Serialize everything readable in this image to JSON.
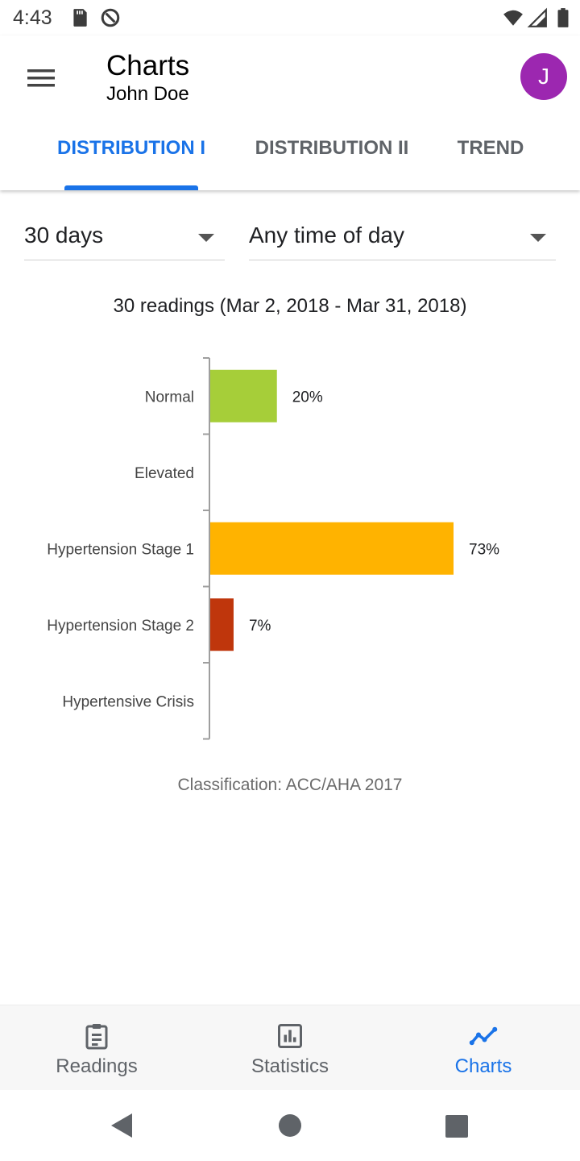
{
  "status_bar": {
    "time": "4:43",
    "icons": [
      "sd-card-icon",
      "data-saver-icon",
      "wifi-icon",
      "cell-signal-icon",
      "battery-icon"
    ]
  },
  "app_bar": {
    "title": "Charts",
    "subtitle": "John Doe",
    "avatar_initial": "J",
    "avatar_color": "#9c27b0",
    "menu_icon": "hamburger-menu-icon"
  },
  "tabs": [
    {
      "label": "DISTRIBUTION I",
      "active": true
    },
    {
      "label": "DISTRIBUTION II",
      "active": false
    },
    {
      "label": "TREND",
      "active": false
    }
  ],
  "filters": {
    "period": {
      "selected": "30 days"
    },
    "time_of_day": {
      "selected": "Any time of day"
    }
  },
  "chart_subtitle": "30 readings (Mar 2, 2018 - Mar 31, 2018)",
  "chart_data": {
    "type": "bar",
    "orientation": "horizontal",
    "categories": [
      "Normal",
      "Elevated",
      "Hypertension Stage 1",
      "Hypertension Stage 2",
      "Hypertensive Crisis"
    ],
    "values": [
      20,
      0,
      73,
      7,
      0
    ],
    "value_labels": [
      "20%",
      "",
      "73%",
      "7%",
      ""
    ],
    "colors": [
      "#a6ce39",
      "#f0e442",
      "#ffb300",
      "#bf360c",
      "#8b0000"
    ],
    "xlim": [
      0,
      100
    ],
    "grid": false,
    "legend": "none"
  },
  "footnote": "Classification: ACC/AHA 2017",
  "bottom_nav": [
    {
      "label": "Readings",
      "icon": "clipboard-icon",
      "active": false
    },
    {
      "label": "Statistics",
      "icon": "bar-chart-icon",
      "active": false
    },
    {
      "label": "Charts",
      "icon": "trend-line-icon",
      "active": true
    }
  ],
  "colors": {
    "accent": "#1a73e8",
    "inactive": "#5f6368"
  },
  "system_nav": [
    "back-icon",
    "home-icon",
    "recents-icon"
  ]
}
